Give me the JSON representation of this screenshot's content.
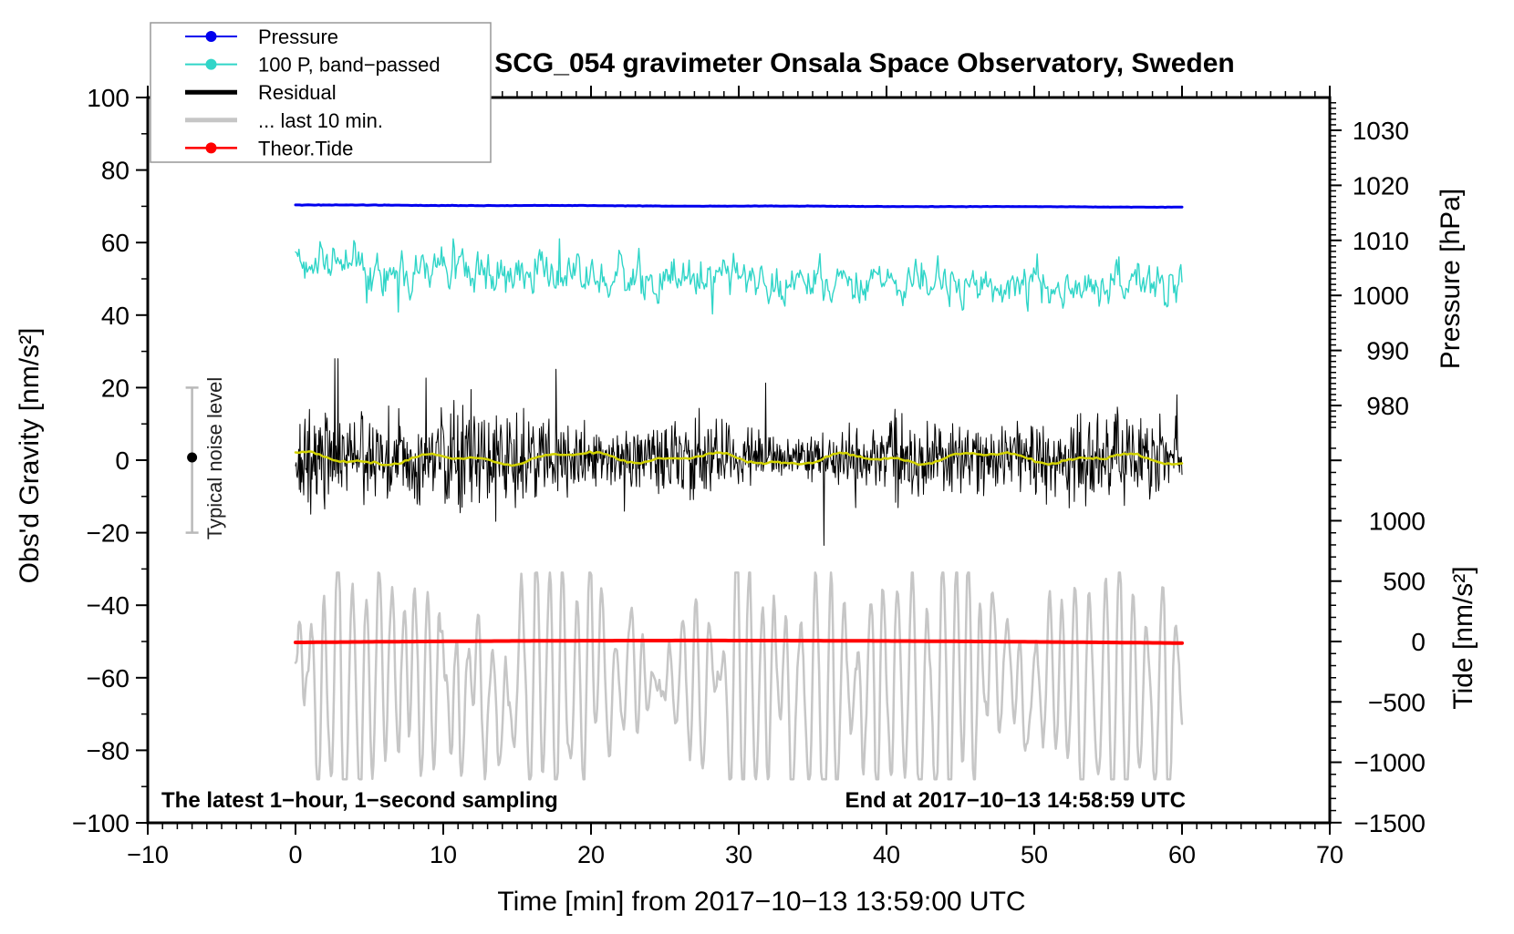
{
  "chart_data": {
    "type": "line",
    "title": "SCG_054 gravimeter Onsala Space Observatory, Sweden",
    "xlabel": "Time [min] from 2017−10−13 13:59:00 UTC",
    "x_range": [
      -10,
      70
    ],
    "data_x_range_min": [
      0,
      60
    ],
    "x_ticks": [
      {
        "v": -10,
        "label": "−10"
      },
      {
        "v": 0,
        "label": "0"
      },
      {
        "v": 10,
        "label": "10"
      },
      {
        "v": 20,
        "label": "20"
      },
      {
        "v": 30,
        "label": "30"
      },
      {
        "v": 40,
        "label": "40"
      },
      {
        "v": 50,
        "label": "50"
      },
      {
        "v": 60,
        "label": "60"
      },
      {
        "v": 70,
        "label": "70"
      }
    ],
    "x_minor_step": 1,
    "left_axis": {
      "label": "Obs'd Gravity [nm/s²]",
      "range": [
        -100,
        100
      ],
      "major_ticks": [
        {
          "v": 100,
          "label": "100"
        },
        {
          "v": 80,
          "label": "80"
        },
        {
          "v": 60,
          "label": "60"
        },
        {
          "v": 40,
          "label": "40"
        },
        {
          "v": 20,
          "label": "20"
        },
        {
          "v": 0,
          "label": "0"
        },
        {
          "v": -20,
          "label": "−20"
        },
        {
          "v": -40,
          "label": "−40"
        },
        {
          "v": -60,
          "label": "−60"
        },
        {
          "v": -80,
          "label": "−80"
        },
        {
          "v": -100,
          "label": "−100"
        }
      ],
      "minor_step": 10
    },
    "right_axis_pressure": {
      "label": "Pressure [hPa]",
      "major_ticks": [
        {
          "v": 1030,
          "label": "1030"
        },
        {
          "v": 1020,
          "label": "1020"
        },
        {
          "v": 1010,
          "label": "1010"
        },
        {
          "v": 1000,
          "label": "1000"
        },
        {
          "v": 990,
          "label": "990"
        },
        {
          "v": 980,
          "label": "980"
        }
      ],
      "minor_step": 1,
      "minor_range": [
        976,
        1036
      ]
    },
    "right_axis_tide": {
      "label": "Tide [nm/s²]",
      "major_ticks": [
        {
          "v": 1000,
          "label": "1000"
        },
        {
          "v": 500,
          "label": "500"
        },
        {
          "v": 0,
          "label": "0"
        },
        {
          "v": -500,
          "label": "−500"
        },
        {
          "v": -1000,
          "label": "−1000"
        },
        {
          "v": -1500,
          "label": "−1500"
        }
      ],
      "minor_step": 100,
      "minor_range": [
        -1500,
        1600
      ]
    },
    "legend": {
      "entries": [
        {
          "label": "Pressure",
          "color": "#0000EE",
          "width": 2,
          "dot": true
        },
        {
          "label": "100 P, band−passed",
          "color": "#30D5C8",
          "width": 2,
          "dot": true
        },
        {
          "label": "Residual",
          "color": "#000000",
          "width": 5,
          "dot": false
        },
        {
          "label": "... last 10 min.",
          "color": "#C6C6C6",
          "width": 5,
          "dot": false
        },
        {
          "label": "Theor.Tide",
          "color": "#FF0000",
          "width": 2.5,
          "dot": true
        }
      ]
    },
    "series": [
      {
        "name": "Pressure",
        "axis": "pressure",
        "color": "#0000EE",
        "stroke_width": 3,
        "start_hpa": 1016.42,
        "end_hpa": 1016.05,
        "noise_hpa": 0.03
      },
      {
        "name": "100 P, band−passed",
        "axis": "gravity",
        "color": "#30D5C8",
        "stroke_width": 1.4,
        "mean_start": 54.2,
        "mean_end": 46.2,
        "noise_sd": 2.6,
        "spike_prob": 0.008
      },
      {
        "name": "Residual",
        "axis": "gravity",
        "color": "#000000",
        "stroke_width": 1,
        "mean": 0.4,
        "noise_sd": 5.0,
        "spike_prob": 0.013,
        "extreme": 28
      },
      {
        "name": "Residual smoothed",
        "axis": "gravity",
        "color": "#D2D200",
        "stroke_width": 2.5,
        "mean": 0.45,
        "amp": 1.2
      },
      {
        "name": "... last 10 min.",
        "axis": "gravity",
        "color": "#C6C6C6",
        "stroke_width": 2.5,
        "mean": -62,
        "typical_amp": 10,
        "min": -88,
        "max": -31,
        "period_s": 55
      },
      {
        "name": "Theor.Tide",
        "axis": "tide",
        "color": "#FF0000",
        "stroke_width": 4,
        "tide_start": -8,
        "tide_peak": 7,
        "tide_end": -13
      }
    ],
    "noise_marker": {
      "label": "Typical noise level",
      "x_min": -7,
      "center": 0,
      "half_range": 20,
      "bar_color": "#B9B9B9",
      "dot_color": "#000000"
    },
    "annotations": {
      "sampling": "The latest 1−hour, 1−second sampling",
      "end": "End at 2017−10−13 14:58:59 UTC"
    }
  }
}
